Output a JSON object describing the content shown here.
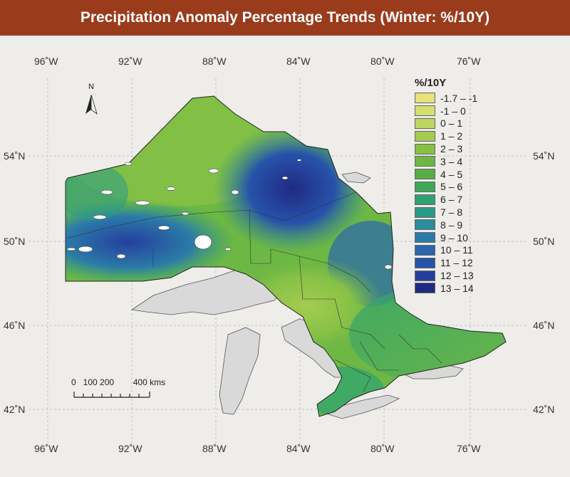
{
  "title": "Precipitation Anomaly Percentage Trends (Winter: %/10Y)",
  "longitudes": [
    "96˚W",
    "92˚W",
    "88˚W",
    "84˚W",
    "80˚W",
    "76˚W"
  ],
  "latitudes": [
    "54˚N",
    "50˚N",
    "46˚N",
    "42˚N"
  ],
  "legend": {
    "title": "%/10Y",
    "items": [
      {
        "label": "-1.7 – -1",
        "color": "#e7e27a"
      },
      {
        "label": "-1 – 0",
        "color": "#d3df6e"
      },
      {
        "label": "0 – 1",
        "color": "#bcd660"
      },
      {
        "label": "1 – 2",
        "color": "#a3cc50"
      },
      {
        "label": "2 – 3",
        "color": "#86c146"
      },
      {
        "label": "3 – 4",
        "color": "#6db744"
      },
      {
        "label": "4 – 5",
        "color": "#55ad48"
      },
      {
        "label": "5 – 6",
        "color": "#3fa858"
      },
      {
        "label": "6 – 7",
        "color": "#2ea271"
      },
      {
        "label": "7 – 8",
        "color": "#2a9a88"
      },
      {
        "label": "8 – 9",
        "color": "#2a8c9c"
      },
      {
        "label": "9 – 10",
        "color": "#2b7ba8"
      },
      {
        "label": "10 – 11",
        "color": "#2966ae"
      },
      {
        "label": "11 – 12",
        "color": "#2753aa"
      },
      {
        "label": "12 – 13",
        "color": "#253f9e"
      },
      {
        "label": "13 – 14",
        "color": "#202a83"
      }
    ]
  },
  "scale": {
    "ticks": "0   100 200        400 kms"
  },
  "north_label": "N",
  "lake_color": "#d9d9d9"
}
